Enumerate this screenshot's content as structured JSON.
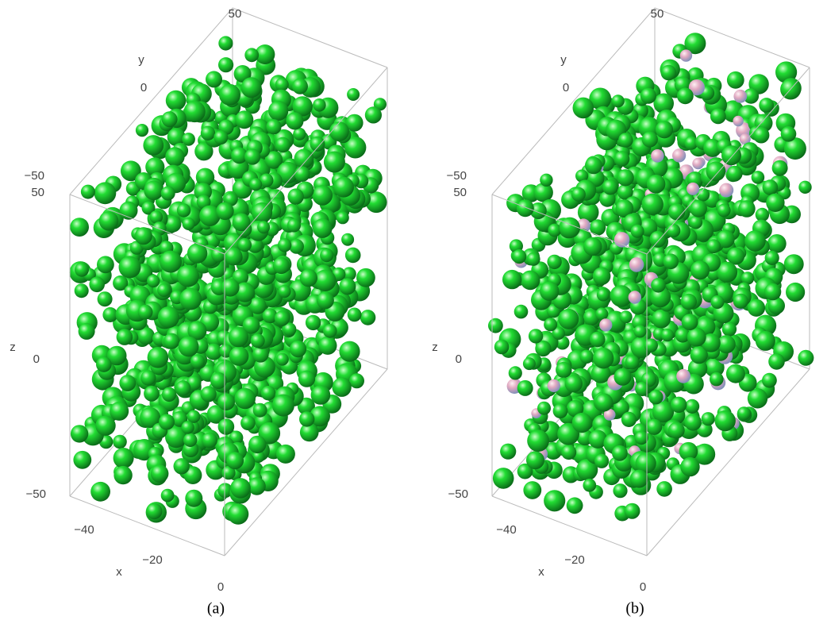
{
  "panels": [
    {
      "label": "(a)",
      "axes": {
        "x": "x",
        "y": "y",
        "z": "z"
      },
      "ticks": {
        "y_top": "50",
        "y_mid": "0",
        "y_low": "−50",
        "z_top": "50",
        "z_mid": "0",
        "z_low": "−50",
        "x_1": "−40",
        "x_2": "−20",
        "x_3": "0"
      }
    },
    {
      "label": "(b)",
      "axes": {
        "x": "x",
        "y": "y",
        "z": "z"
      },
      "ticks": {
        "y_top": "50",
        "y_mid": "0",
        "y_low": "−50",
        "z_top": "50",
        "z_mid": "0",
        "z_low": "−50",
        "x_1": "−40",
        "x_2": "−20",
        "x_3": "0"
      }
    }
  ]
}
